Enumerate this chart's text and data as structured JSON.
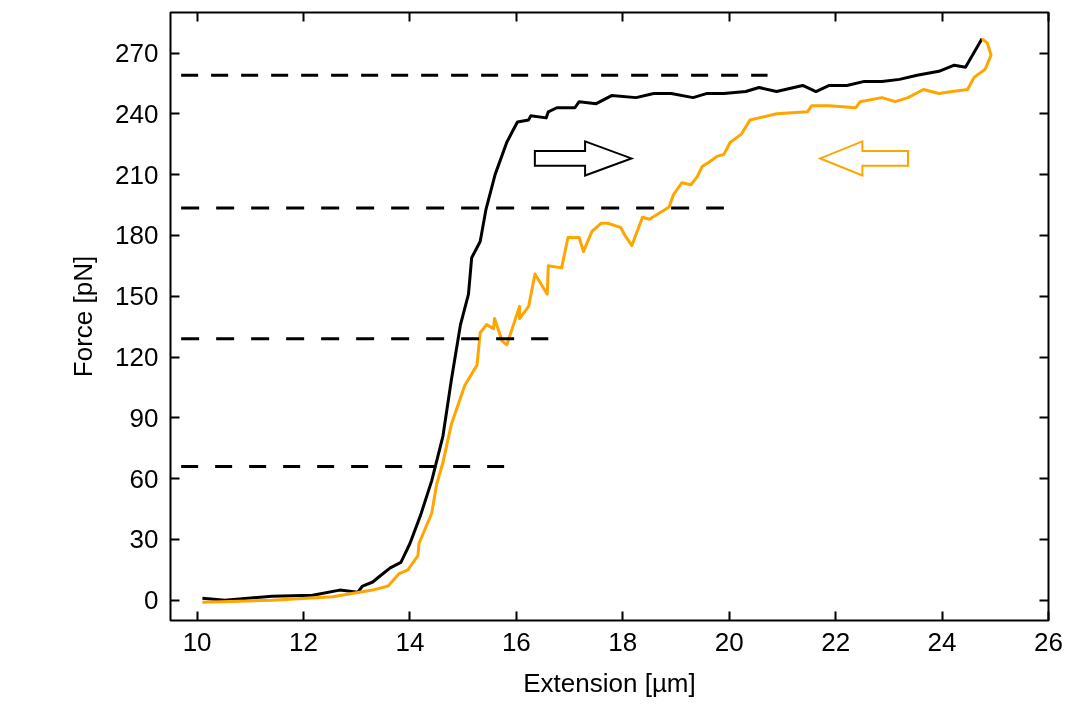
{
  "chart_data": {
    "type": "line",
    "xlabel": "Extension [µm]",
    "ylabel": "Force [pN]",
    "xlim": [
      9.5,
      26
    ],
    "ylim": [
      -10,
      290
    ],
    "xticks": [
      10,
      12,
      14,
      16,
      18,
      20,
      22,
      24,
      26
    ],
    "yticks": [
      0,
      30,
      60,
      90,
      120,
      150,
      180,
      210,
      240,
      270
    ],
    "grid": false,
    "marker": "none",
    "series": [
      {
        "color": "#000000",
        "line_style": "solid",
        "x": [
          10.1,
          10.52,
          10.96,
          11.41,
          12.17,
          12.68,
          13.02,
          13.11,
          13.3,
          13.42,
          13.63,
          13.83,
          14.0,
          14.2,
          14.41,
          14.62,
          14.78,
          14.95,
          15.1,
          15.16,
          15.32,
          15.43,
          15.6,
          15.82,
          15.94,
          16.02,
          16.23,
          16.27,
          16.56,
          16.6,
          16.76,
          17.1,
          17.18,
          17.5,
          17.79,
          18.25,
          18.58,
          18.91,
          19.32,
          19.57,
          19.9,
          20.31,
          20.56,
          20.89,
          21.38,
          21.63,
          21.88,
          22.21,
          22.54,
          22.87,
          23.2,
          23.53,
          23.94,
          24.23,
          24.44,
          24.75
        ],
        "values": [
          1,
          0,
          1,
          2,
          2.5,
          5,
          4,
          7,
          9,
          11.6,
          16,
          18.7,
          28,
          42,
          59,
          81,
          109,
          136,
          151,
          169,
          177,
          193,
          210,
          226,
          232,
          236,
          237,
          239,
          238,
          241,
          243,
          243,
          246,
          245,
          249,
          248,
          250,
          250,
          248,
          250,
          250,
          251,
          253,
          251,
          254,
          251,
          254,
          254,
          256,
          256,
          257,
          259,
          261,
          264,
          263,
          277
        ]
      },
      {
        "color": "#ffa500",
        "line_style": "solid",
        "x": [
          24.75,
          24.85,
          24.92,
          24.81,
          24.6,
          24.48,
          24.19,
          23.94,
          23.65,
          23.36,
          23.12,
          22.87,
          22.46,
          22.38,
          21.88,
          21.55,
          21.47,
          20.89,
          20.56,
          20.39,
          20.23,
          20.02,
          19.9,
          19.77,
          19.61,
          19.49,
          19.4,
          19.28,
          19.11,
          18.95,
          18.87,
          18.5,
          18.37,
          18.17,
          18.04,
          17.96,
          17.71,
          17.59,
          17.42,
          17.26,
          17.18,
          16.97,
          16.85,
          16.6,
          16.58,
          16.35,
          16.23,
          16.06,
          16.06,
          15.82,
          15.73,
          15.59,
          15.57,
          15.44,
          15.32,
          15.26,
          15.03,
          14.78,
          14.62,
          14.5,
          14.41,
          14.17,
          14.15,
          13.96,
          13.79,
          13.59,
          13.3,
          12.55,
          11.41,
          10.1
        ],
        "values": [
          277,
          275,
          269,
          262,
          258,
          252,
          251,
          250,
          252,
          248,
          246,
          248,
          246,
          243,
          244,
          244,
          241,
          240,
          238,
          237,
          230,
          226,
          220,
          219,
          216,
          214,
          209,
          205,
          206,
          200,
          194,
          188,
          189,
          175,
          180,
          184,
          186,
          186,
          182,
          172,
          179,
          179,
          164,
          165,
          151,
          161,
          145,
          139,
          145,
          126,
          128,
          139,
          134,
          136,
          132,
          116,
          106,
          87,
          68,
          57,
          43,
          28,
          22,
          15,
          13,
          7,
          5,
          1.7,
          0,
          -1
        ]
      },
      {
        "color": "#000000",
        "line_style": "dashed",
        "x": [
          9.7,
          20.72
        ],
        "values": [
          259,
          259
        ]
      },
      {
        "color": "#000000",
        "line_style": "dashed",
        "x": [
          9.7,
          19.9
        ],
        "values": [
          193.5,
          193.5
        ]
      },
      {
        "color": "#000000",
        "line_style": "dashed",
        "x": [
          9.7,
          16.6
        ],
        "values": [
          129,
          129
        ]
      },
      {
        "color": "#000000",
        "line_style": "dashed",
        "x": [
          9.7,
          15.77
        ],
        "values": [
          66,
          66
        ]
      }
    ]
  }
}
